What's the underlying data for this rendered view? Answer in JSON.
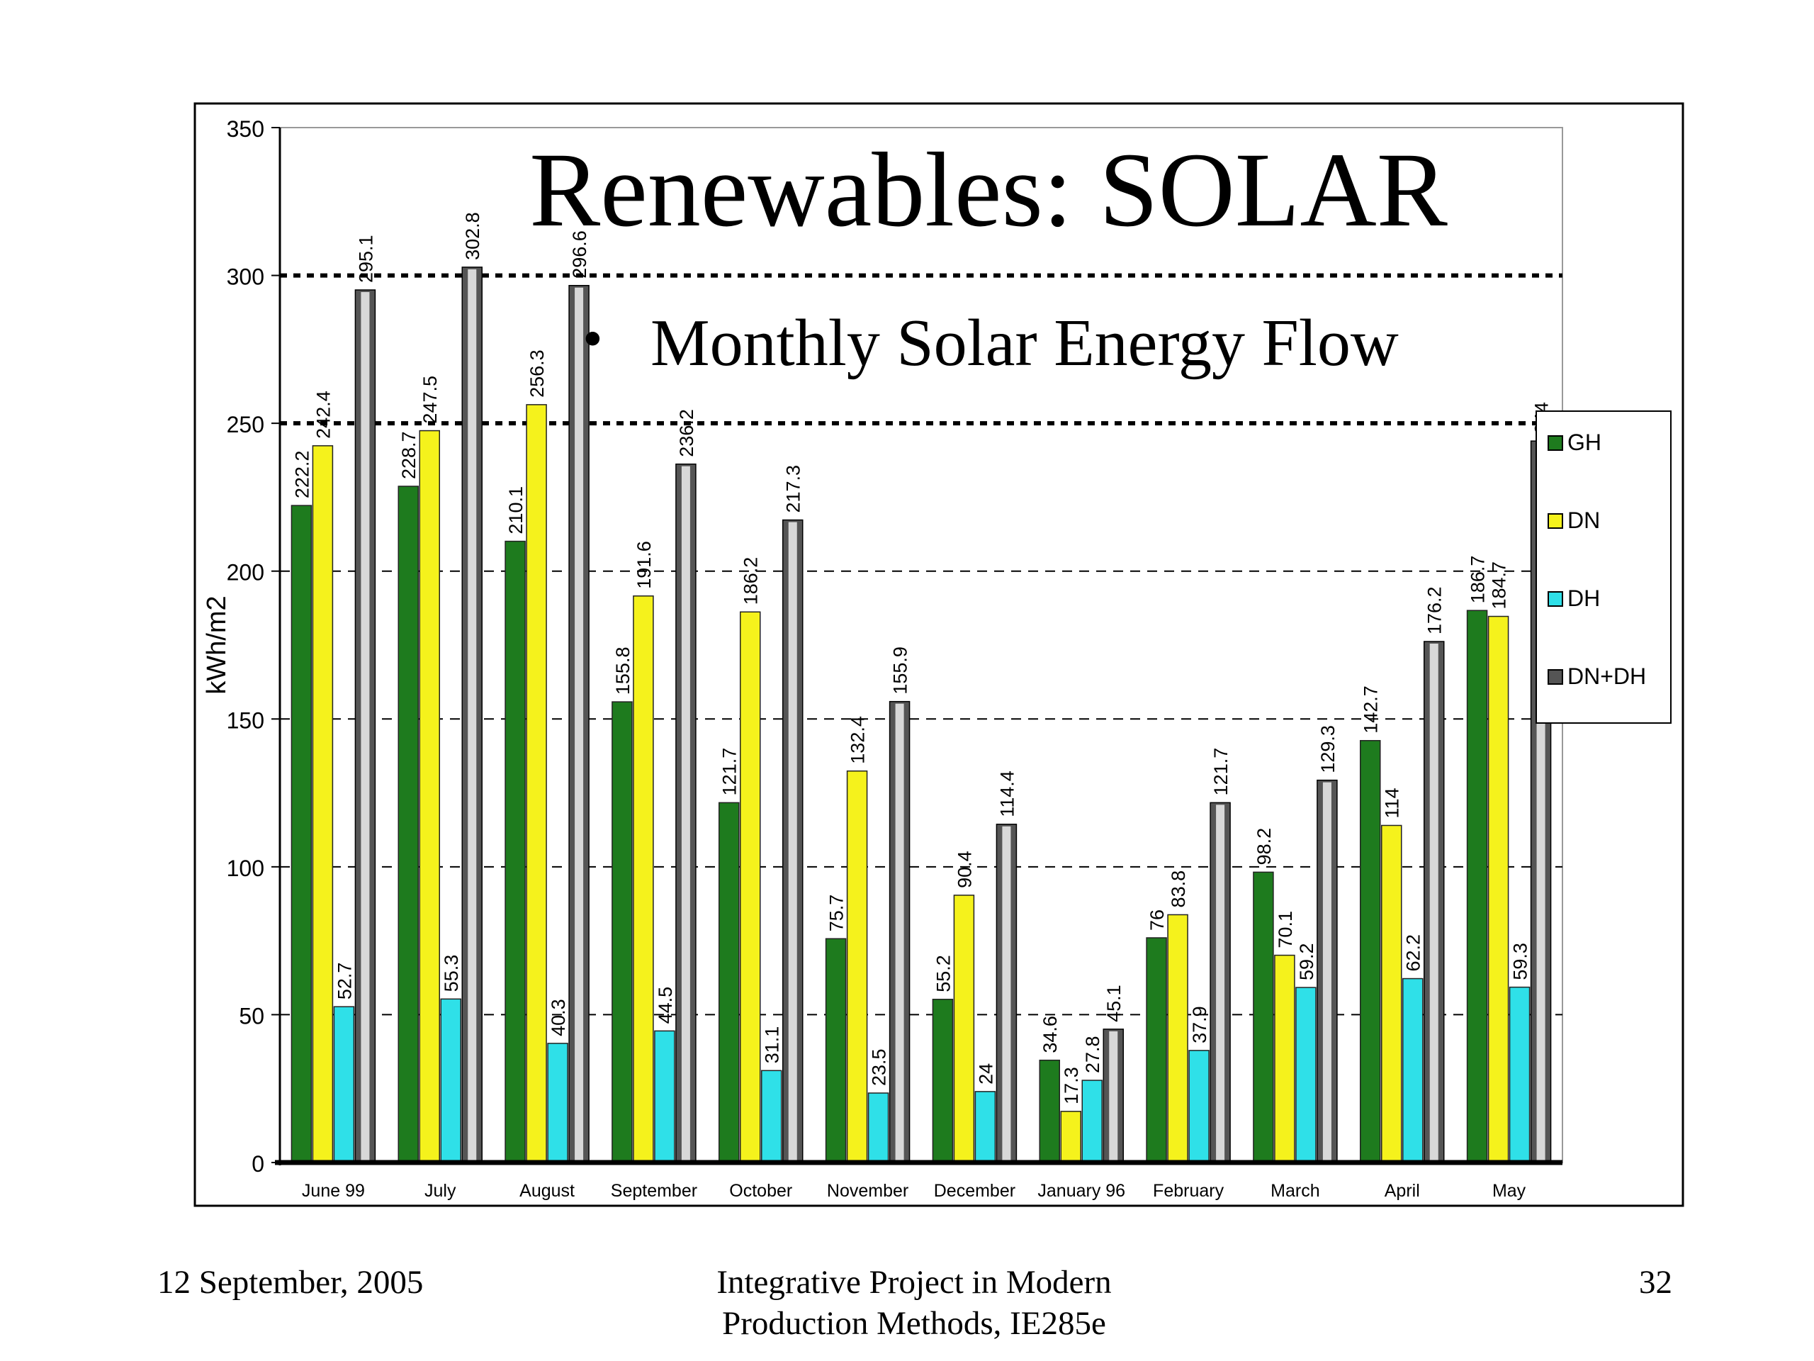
{
  "title": "Renewables: SOLAR",
  "bullet": "Monthly Solar Energy Flow",
  "footer": {
    "date": "12 September, 2005",
    "course_line1": "Integrative Project in Modern",
    "course_line2": "Production Methods, IE285e",
    "page": "32"
  },
  "chart_data": {
    "type": "bar",
    "ylabel": "kWh/m2",
    "ylim": [
      0,
      350
    ],
    "yticks": [
      0,
      50,
      100,
      150,
      200,
      250,
      300,
      350
    ],
    "grid": "horizontal dashed",
    "legend_position": "right",
    "categories": [
      "June 99",
      "July",
      "August",
      "September",
      "October",
      "November",
      "December",
      "January 96",
      "February",
      "March",
      "April",
      "May"
    ],
    "series": [
      {
        "name": "GH",
        "color": "#1e7b1e",
        "values": [
          222.2,
          228.7,
          210.1,
          155.8,
          121.7,
          75.7,
          55.2,
          34.6,
          76,
          98.2,
          142.7,
          186.7
        ]
      },
      {
        "name": "DN",
        "color": "#f5f21c",
        "values": [
          242.4,
          247.5,
          256.3,
          191.6,
          186.2,
          132.4,
          90.4,
          17.3,
          83.8,
          70.1,
          114,
          184.7
        ]
      },
      {
        "name": "DH",
        "color": "#2fe0e8",
        "values": [
          52.7,
          55.3,
          40.3,
          44.5,
          31.1,
          23.5,
          24,
          27.8,
          37.9,
          59.2,
          62.2,
          59.3
        ]
      },
      {
        "name": "DN+DH",
        "color": "#555555",
        "values": [
          295.1,
          302.8,
          296.6,
          236.2,
          217.3,
          155.9,
          114.4,
          45.1,
          121.7,
          129.3,
          176.2,
          244
        ]
      }
    ]
  }
}
